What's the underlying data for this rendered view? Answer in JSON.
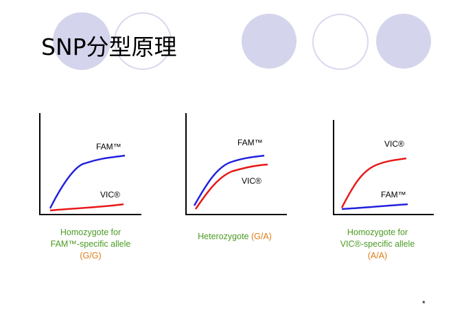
{
  "slide": {
    "title": "SNP分型原理",
    "footer_mark": "*"
  },
  "colors": {
    "fam": "#2020e0",
    "vic": "#e81818",
    "axis": "#000000",
    "caption_green": "#4a9a22",
    "caption_orange": "#e07a14",
    "deco_fill": "#d4d4ec",
    "deco_ring": "#d8d8ee"
  },
  "panels": [
    {
      "id": "homozygote-fam",
      "curves": [
        {
          "dye": "fam",
          "label": "FAM™",
          "shape": "sigmoid-high"
        },
        {
          "dye": "vic",
          "label": "VIC®",
          "shape": "flat-low"
        }
      ],
      "caption": {
        "line1": "Homozygote for",
        "line2": "FAM™-specific allele",
        "line3": "(G/G)"
      }
    },
    {
      "id": "heterozygote",
      "curves": [
        {
          "dye": "fam",
          "label": "FAM™",
          "shape": "sigmoid-high"
        },
        {
          "dye": "vic",
          "label": "VIC®",
          "shape": "sigmoid-mid"
        }
      ],
      "caption": {
        "line1_prefix": "Heterozygote ",
        "line1_suffix": "(G/A)"
      }
    },
    {
      "id": "homozygote-vic",
      "curves": [
        {
          "dye": "vic",
          "label": "VIC®",
          "shape": "sigmoid-high"
        },
        {
          "dye": "fam",
          "label": "FAM™",
          "shape": "flat-low"
        }
      ],
      "caption": {
        "line1": "Homozygote for",
        "line2": "VIC®-specific allele",
        "line3": "(A/A)"
      }
    }
  ]
}
